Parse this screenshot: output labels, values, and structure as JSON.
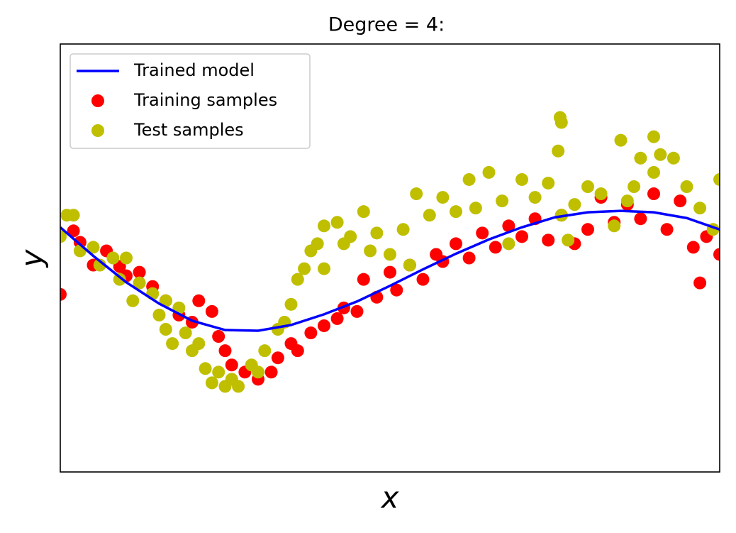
{
  "chart_data": {
    "type": "scatter",
    "title": "Degree = 4:",
    "x_label": "x",
    "y_label": "y",
    "xlim": [
      0,
      1
    ],
    "ylim": [
      -3,
      3
    ],
    "legend": "upper left",
    "series": [
      {
        "name": "Trained model",
        "type": "line",
        "color": "#0000ff",
        "x": [
          0,
          0.05,
          0.1,
          0.15,
          0.2,
          0.25,
          0.3,
          0.35,
          0.4,
          0.45,
          0.5,
          0.55,
          0.6,
          0.65,
          0.7,
          0.75,
          0.8,
          0.85,
          0.9,
          0.95,
          1.0
        ],
        "values": [
          0.43,
          0.03,
          -0.34,
          -0.64,
          -0.88,
          -1.01,
          -1.02,
          -0.94,
          -0.79,
          -0.61,
          -0.39,
          -0.16,
          0.06,
          0.26,
          0.43,
          0.57,
          0.64,
          0.66,
          0.64,
          0.56,
          0.4
        ]
      },
      {
        "name": "Training samples",
        "type": "scatter",
        "color": "#ff0000",
        "x": [
          0,
          0.02,
          0.03,
          0.05,
          0.07,
          0.09,
          0.1,
          0.12,
          0.14,
          0.16,
          0.18,
          0.2,
          0.21,
          0.23,
          0.24,
          0.25,
          0.26,
          0.28,
          0.3,
          0.32,
          0.33,
          0.35,
          0.36,
          0.38,
          0.4,
          0.42,
          0.43,
          0.45,
          0.46,
          0.48,
          0.5,
          0.51,
          0.53,
          0.55,
          0.57,
          0.58,
          0.6,
          0.62,
          0.64,
          0.66,
          0.68,
          0.7,
          0.72,
          0.74,
          0.76,
          0.78,
          0.8,
          0.82,
          0.84,
          0.86,
          0.88,
          0.9,
          0.92,
          0.94,
          0.96,
          0.97,
          0.98,
          1.0
        ],
        "values": [
          -0.51,
          0.38,
          0.22,
          -0.1,
          0.1,
          -0.12,
          -0.25,
          -0.2,
          -0.4,
          -0.6,
          -0.8,
          -0.9,
          -0.6,
          -0.75,
          -1.1,
          -1.3,
          -1.5,
          -1.6,
          -1.7,
          -1.6,
          -1.4,
          -1.2,
          -1.3,
          -1.05,
          -0.95,
          -0.85,
          -0.7,
          -0.75,
          -0.3,
          -0.55,
          -0.2,
          -0.45,
          -0.1,
          -0.3,
          0.05,
          -0.05,
          0.2,
          0.0,
          0.35,
          0.15,
          0.45,
          0.3,
          0.55,
          0.25,
          0.6,
          0.2,
          0.4,
          0.85,
          0.5,
          0.75,
          0.55,
          0.9,
          0.4,
          0.8,
          0.15,
          -0.35,
          0.3,
          0.05
        ]
      },
      {
        "name": "Test samples",
        "type": "scatter",
        "color": "#bfbf00",
        "x": [
          0,
          0.01,
          0.02,
          0.03,
          0.05,
          0.06,
          0.08,
          0.09,
          0.1,
          0.11,
          0.12,
          0.14,
          0.15,
          0.16,
          0.18,
          0.16,
          0.17,
          0.19,
          0.2,
          0.21,
          0.22,
          0.23,
          0.24,
          0.25,
          0.26,
          0.27,
          0.29,
          0.3,
          0.31,
          0.33,
          0.34,
          0.35,
          0.36,
          0.37,
          0.38,
          0.39,
          0.4,
          0.4,
          0.42,
          0.43,
          0.44,
          0.46,
          0.47,
          0.48,
          0.5,
          0.52,
          0.53,
          0.54,
          0.56,
          0.58,
          0.6,
          0.62,
          0.63,
          0.65,
          0.67,
          0.68,
          0.7,
          0.72,
          0.74,
          0.76,
          0.77,
          0.78,
          0.8,
          0.82,
          0.84,
          0.76,
          0.755,
          0.758,
          0.85,
          0.86,
          0.87,
          0.88,
          0.9,
          0.9,
          0.91,
          0.93,
          0.95,
          0.97,
          0.99,
          1.0
        ],
        "values": [
          0.3,
          0.6,
          0.6,
          0.1,
          0.15,
          -0.1,
          0.0,
          -0.3,
          0.0,
          -0.6,
          -0.35,
          -0.5,
          -0.8,
          -0.6,
          -0.7,
          -1.0,
          -1.2,
          -1.05,
          -1.3,
          -1.2,
          -1.55,
          -1.75,
          -1.6,
          -1.8,
          -1.7,
          -1.8,
          -1.5,
          -1.6,
          -1.3,
          -1.0,
          -0.9,
          -0.65,
          -0.3,
          -0.15,
          0.1,
          0.2,
          -0.15,
          0.45,
          0.5,
          0.2,
          0.3,
          0.65,
          0.1,
          0.35,
          0.05,
          0.4,
          -0.1,
          0.9,
          0.6,
          0.85,
          0.65,
          1.1,
          0.7,
          1.2,
          0.8,
          0.2,
          1.1,
          0.85,
          1.05,
          0.6,
          0.25,
          0.75,
          1.0,
          0.9,
          0.45,
          1.9,
          1.5,
          1.97,
          1.65,
          0.8,
          1.0,
          1.4,
          1.2,
          1.7,
          1.45,
          1.4,
          1.0,
          0.7,
          0.4,
          1.1
        ]
      }
    ]
  }
}
